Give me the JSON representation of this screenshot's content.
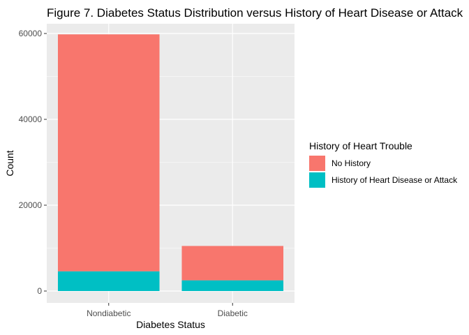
{
  "chart_data": {
    "type": "bar",
    "stacked": true,
    "title": "Figure 7. Diabetes Status Distribution versus History of Heart Disease or Attack",
    "xlabel": "Diabetes Status",
    "ylabel": "Count",
    "categories": [
      "Nondiabetic",
      "Diabetic"
    ],
    "ylim": [
      0,
      62000
    ],
    "yticks": [
      0,
      20000,
      40000,
      60000
    ],
    "grid": true,
    "legend_title": "History of Heart Trouble",
    "legend_position": "right",
    "series": [
      {
        "name": "History of Heart Disease or Attack",
        "color": "#00BFC4",
        "values": [
          4600,
          2500
        ]
      },
      {
        "name": "No History",
        "color": "#F8766D",
        "values": [
          55200,
          8000
        ]
      }
    ],
    "legend_order": [
      "No History",
      "History of Heart Disease or Attack"
    ]
  }
}
